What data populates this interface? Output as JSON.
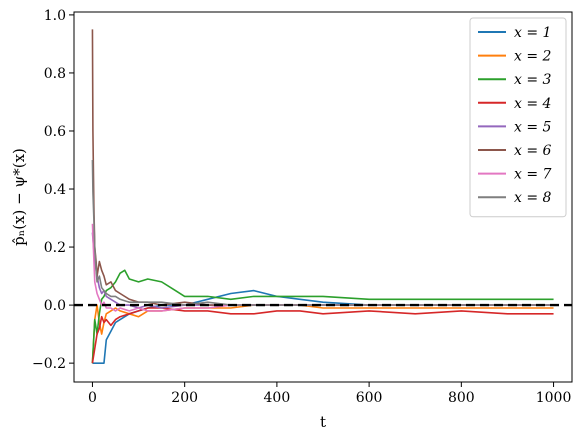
{
  "chart_data": {
    "type": "line",
    "xlabel": "t",
    "ylabel": "p̂ₙ(x) − ψ*(x)",
    "xlim": [
      -40,
      1040
    ],
    "ylim": [
      -0.265,
      1.01
    ],
    "xticks": [
      0,
      200,
      400,
      600,
      800,
      1000
    ],
    "yticks": [
      -0.2,
      0.0,
      0.2,
      0.4,
      0.6,
      0.8,
      1.0
    ],
    "xtick_labels": [
      "0",
      "200",
      "400",
      "600",
      "800",
      "1000"
    ],
    "ytick_labels": [
      "−0.2",
      "0.0",
      "0.2",
      "0.4",
      "0.6",
      "0.8",
      "1.0"
    ],
    "legend_position": "top-right",
    "reference_line": {
      "y": 0.0,
      "style": "dashed",
      "color": "#000000"
    },
    "series": [
      {
        "name": "x = 1",
        "color": "#1f77b4",
        "x": [
          0,
          5,
          10,
          15,
          20,
          25,
          30,
          40,
          50,
          60,
          80,
          100,
          120,
          150,
          200,
          250,
          300,
          350,
          400,
          450,
          500,
          600,
          700,
          800,
          900,
          1000
        ],
        "y": [
          -0.2,
          -0.2,
          -0.2,
          -0.2,
          -0.2,
          -0.2,
          -0.12,
          -0.09,
          -0.06,
          -0.05,
          -0.03,
          -0.02,
          -0.01,
          0.0,
          0.0,
          0.02,
          0.04,
          0.05,
          0.03,
          0.02,
          0.01,
          0.0,
          0.0,
          0.0,
          0.0,
          0.0
        ]
      },
      {
        "name": "x = 2",
        "color": "#ff7f0e",
        "x": [
          0,
          5,
          10,
          15,
          20,
          25,
          30,
          40,
          50,
          60,
          80,
          100,
          120,
          150,
          200,
          250,
          300,
          350,
          400,
          450,
          500,
          600,
          700,
          800,
          900,
          1000
        ],
        "y": [
          -0.2,
          -0.05,
          0.0,
          -0.06,
          -0.1,
          -0.06,
          -0.03,
          -0.02,
          -0.01,
          -0.02,
          -0.03,
          -0.04,
          -0.02,
          -0.02,
          -0.01,
          -0.01,
          -0.01,
          0.0,
          0.0,
          0.0,
          -0.01,
          -0.01,
          -0.01,
          -0.01,
          -0.01,
          -0.01
        ]
      },
      {
        "name": "x = 3",
        "color": "#2ca02c",
        "x": [
          0,
          5,
          10,
          15,
          20,
          25,
          30,
          40,
          50,
          60,
          70,
          80,
          100,
          120,
          150,
          180,
          200,
          250,
          300,
          350,
          400,
          450,
          500,
          600,
          700,
          800,
          900,
          1000
        ],
        "y": [
          -0.2,
          -0.05,
          -0.1,
          -0.03,
          0.02,
          0.03,
          0.05,
          0.06,
          0.08,
          0.11,
          0.12,
          0.09,
          0.08,
          0.09,
          0.08,
          0.05,
          0.03,
          0.03,
          0.02,
          0.03,
          0.03,
          0.03,
          0.03,
          0.02,
          0.02,
          0.02,
          0.02,
          0.02
        ]
      },
      {
        "name": "x = 4",
        "color": "#d62728",
        "x": [
          0,
          5,
          10,
          15,
          20,
          25,
          30,
          40,
          50,
          60,
          80,
          100,
          120,
          150,
          200,
          250,
          300,
          350,
          400,
          450,
          500,
          600,
          700,
          800,
          900,
          1000
        ],
        "y": [
          -0.2,
          -0.15,
          -0.1,
          -0.08,
          -0.04,
          -0.06,
          -0.05,
          -0.07,
          -0.05,
          -0.04,
          -0.03,
          -0.02,
          -0.01,
          -0.01,
          -0.02,
          -0.02,
          -0.03,
          -0.03,
          -0.02,
          -0.02,
          -0.03,
          -0.02,
          -0.03,
          -0.02,
          -0.03,
          -0.03
        ]
      },
      {
        "name": "x = 5",
        "color": "#9467bd",
        "x": [
          0,
          5,
          10,
          15,
          20,
          25,
          30,
          40,
          50,
          60,
          80,
          100,
          120,
          150,
          200,
          250,
          300,
          350,
          400,
          450,
          500,
          600,
          700,
          800,
          900,
          1000
        ],
        "y": [
          0.25,
          0.15,
          0.1,
          0.06,
          0.04,
          0.05,
          0.03,
          0.02,
          0.01,
          0.0,
          0.0,
          -0.01,
          0.0,
          -0.01,
          0.0,
          0.0,
          0.0,
          0.0,
          0.0,
          0.0,
          0.0,
          0.0,
          0.0,
          0.0,
          0.0,
          0.0
        ]
      },
      {
        "name": "x = 6",
        "color": "#8c564b",
        "x": [
          0,
          1,
          3,
          5,
          8,
          10,
          15,
          20,
          25,
          30,
          40,
          50,
          60,
          80,
          100,
          120,
          150,
          200,
          250,
          300,
          350,
          400,
          450,
          500,
          600,
          700,
          800,
          900,
          1000
        ],
        "y": [
          0.95,
          0.6,
          0.35,
          0.2,
          0.15,
          0.1,
          0.15,
          0.12,
          0.1,
          0.07,
          0.08,
          0.05,
          0.04,
          0.02,
          0.01,
          0.01,
          0.0,
          0.01,
          0.0,
          0.0,
          0.0,
          0.0,
          0.0,
          0.0,
          0.0,
          0.0,
          0.0,
          0.0,
          0.0
        ]
      },
      {
        "name": "x = 7",
        "color": "#e377c2",
        "x": [
          0,
          5,
          10,
          15,
          20,
          25,
          30,
          40,
          50,
          60,
          80,
          100,
          120,
          150,
          200,
          250,
          300,
          350,
          400,
          450,
          500,
          600,
          700,
          800,
          900,
          1000
        ],
        "y": [
          0.28,
          0.08,
          0.04,
          0.02,
          0.0,
          0.01,
          -0.01,
          -0.01,
          -0.02,
          -0.01,
          -0.02,
          -0.01,
          -0.02,
          -0.02,
          -0.01,
          -0.01,
          0.0,
          0.0,
          0.0,
          0.0,
          0.0,
          0.0,
          0.0,
          0.0,
          0.0,
          0.0
        ]
      },
      {
        "name": "x = 8",
        "color": "#7f7f7f",
        "x": [
          0,
          1,
          3,
          5,
          8,
          10,
          15,
          20,
          25,
          30,
          40,
          50,
          60,
          80,
          100,
          120,
          150,
          200,
          250,
          300,
          350,
          400,
          450,
          500,
          600,
          700,
          800,
          900,
          1000
        ],
        "y": [
          0.5,
          0.39,
          0.3,
          0.2,
          0.12,
          0.08,
          0.1,
          0.06,
          0.05,
          0.04,
          0.03,
          0.03,
          0.02,
          0.01,
          0.01,
          0.01,
          0.01,
          0.0,
          0.01,
          0.0,
          0.0,
          0.0,
          0.0,
          0.0,
          0.0,
          0.0,
          0.0,
          0.0,
          0.0
        ]
      }
    ]
  }
}
